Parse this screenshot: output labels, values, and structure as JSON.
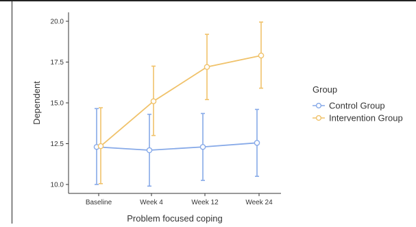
{
  "chart_data": {
    "type": "line",
    "title": "",
    "xlabel": "Problem focused coping",
    "ylabel": "Dependent",
    "categories": [
      "Baseline",
      "Week 4",
      "Week 12",
      "Week 24"
    ],
    "ylim": [
      9.6,
      20.4
    ],
    "yticks": [
      10.0,
      12.5,
      15.0,
      17.5,
      20.0
    ],
    "ytick_labels": [
      "10.0",
      "12.5",
      "15.0",
      "17.5",
      "20.0"
    ],
    "grid": false,
    "legend": {
      "title": "Group",
      "placement": "right"
    },
    "series": [
      {
        "name": "Control Group",
        "color": "#86a9e8",
        "values": [
          12.3,
          12.1,
          12.3,
          12.55
        ],
        "lower": [
          10.0,
          9.9,
          10.25,
          10.5
        ],
        "upper": [
          14.65,
          14.3,
          14.35,
          14.6
        ]
      },
      {
        "name": "Intervention Group",
        "color": "#f0c26a",
        "values": [
          12.35,
          15.1,
          17.2,
          17.9
        ],
        "lower": [
          10.05,
          13.0,
          15.2,
          15.9
        ],
        "upper": [
          14.7,
          17.25,
          19.2,
          19.95
        ]
      }
    ]
  }
}
